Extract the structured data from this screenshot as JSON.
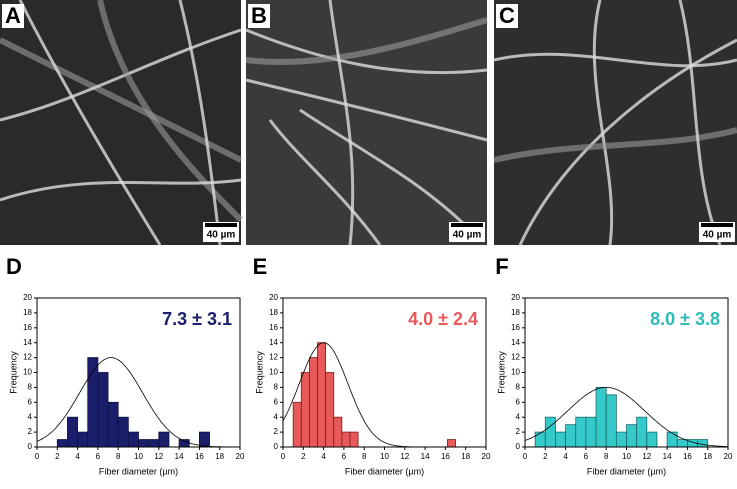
{
  "panels": [
    {
      "label": "A",
      "scale_bar": "40 µm"
    },
    {
      "label": "B",
      "scale_bar": "40 µm"
    },
    {
      "label": "C",
      "scale_bar": "40 µm"
    }
  ],
  "chart_data": [
    {
      "type": "histogram",
      "label": "D",
      "annotation": "7.3 ± 3.1",
      "color": "#1b1f6b",
      "edge": "#0d1040",
      "x_label": "Fiber diameter (µm)",
      "y_label": "Frequency",
      "bins": [
        2,
        3,
        4,
        5,
        6,
        7,
        8,
        9,
        10,
        11,
        12,
        13,
        14,
        15,
        16,
        17
      ],
      "values": [
        1,
        4,
        2,
        12,
        10,
        6,
        4,
        2,
        1,
        1,
        2,
        0,
        1,
        0,
        2
      ],
      "fit": {
        "mean": 7.3,
        "sd": 3.1,
        "peak": 12
      },
      "xlim": [
        0,
        20
      ],
      "xticks": [
        0,
        2,
        4,
        6,
        8,
        10,
        12,
        14,
        16,
        18,
        20
      ],
      "ylim": [
        0,
        20
      ],
      "yticks": [
        0,
        2,
        4,
        6,
        8,
        10,
        12,
        14,
        16,
        18,
        20
      ]
    },
    {
      "type": "histogram",
      "label": "E",
      "annotation": "4.0 ± 2.4",
      "color": "#e8595a",
      "edge": "#7a1d1d",
      "x_label": "Fiber diameter (µm)",
      "y_label": "Frequency",
      "bins": [
        1,
        1.8,
        2.6,
        3.4,
        4.2,
        5,
        5.8,
        6.6,
        7.4,
        8.2,
        9,
        9.8,
        10.6,
        11.4,
        12.2,
        13,
        13.8,
        14.6,
        15.4,
        16.2,
        17
      ],
      "values": [
        6,
        10,
        12,
        14,
        10,
        4,
        2,
        2,
        0,
        0,
        0,
        0,
        0,
        0,
        0,
        0,
        0,
        0,
        0,
        1
      ],
      "fit": {
        "mean": 4.0,
        "sd": 2.4,
        "peak": 14
      },
      "xlim": [
        0,
        20
      ],
      "xticks": [
        0,
        2,
        4,
        6,
        8,
        10,
        12,
        14,
        16,
        18,
        20
      ],
      "ylim": [
        0,
        20
      ],
      "yticks": [
        0,
        2,
        4,
        6,
        8,
        10,
        12,
        14,
        16,
        18,
        20
      ]
    },
    {
      "type": "histogram",
      "label": "F",
      "annotation": "8.0 ± 3.8",
      "color": "#35c9c9",
      "edge": "#166b6b",
      "x_label": "Fiber diameter (µm)",
      "y_label": "Frequency",
      "bins": [
        1,
        2,
        3,
        4,
        5,
        6,
        7,
        8,
        9,
        10,
        11,
        12,
        13,
        14,
        15,
        16,
        17,
        18
      ],
      "values": [
        2,
        4,
        2,
        3,
        4,
        4,
        8,
        7,
        2,
        3,
        4,
        2,
        0,
        2,
        1,
        1,
        1
      ],
      "fit": {
        "mean": 8.0,
        "sd": 3.8,
        "peak": 8
      },
      "xlim": [
        0,
        20
      ],
      "xticks": [
        0,
        2,
        4,
        6,
        8,
        10,
        12,
        14,
        16,
        18,
        20
      ],
      "ylim": [
        0,
        20
      ],
      "yticks": [
        0,
        2,
        4,
        6,
        8,
        10,
        12,
        14,
        16,
        18,
        20
      ]
    }
  ]
}
